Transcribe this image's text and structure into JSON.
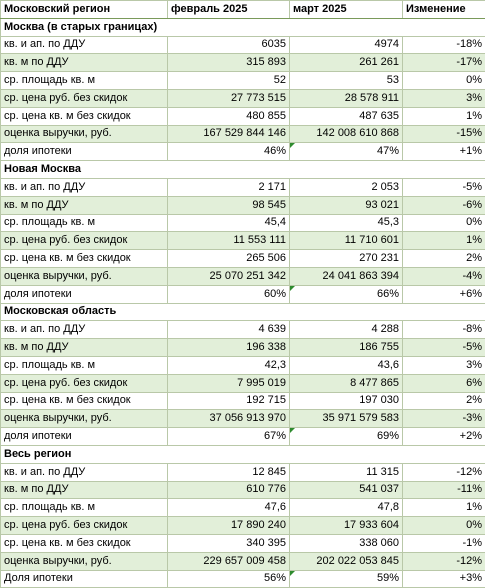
{
  "header": {
    "region": "Московский регион",
    "feb": "февраль 2025",
    "mar": "март 2025",
    "change": "Изменение"
  },
  "sections": [
    {
      "title": "Москва (в старых границах)",
      "rows": [
        {
          "label": "кв. и ап. по ДДУ",
          "feb": "6035",
          "mar": "4974",
          "change": "-18%"
        },
        {
          "label": "кв. м по ДДУ",
          "feb": "315 893",
          "mar": "261 261",
          "change": "-17%"
        },
        {
          "label": "ср. площадь кв. м",
          "feb": "52",
          "mar": "53",
          "change": "0%"
        },
        {
          "label": "ср. цена руб. без скидок",
          "feb": "27 773 515",
          "mar": "28 578 911",
          "change": "3%"
        },
        {
          "label": "ср. цена кв. м без скидок",
          "feb": "480 855",
          "mar": "487 635",
          "change": "1%"
        },
        {
          "label": "оценка выручки, руб.",
          "feb": "167 529 844 146",
          "mar": "142 008 610 868",
          "change": "-15%"
        },
        {
          "label": "доля ипотеки",
          "feb": "46%",
          "mar": "47%",
          "change": "+1%",
          "mark": true
        }
      ]
    },
    {
      "title": "Новая Москва",
      "rows": [
        {
          "label": "кв. и ап. по ДДУ",
          "feb": "2 171",
          "mar": "2 053",
          "change": "-5%"
        },
        {
          "label": "кв. м по ДДУ",
          "feb": "98 545",
          "mar": "93 021",
          "change": "-6%"
        },
        {
          "label": "ср. площадь кв. м",
          "feb": "45,4",
          "mar": "45,3",
          "change": "0%"
        },
        {
          "label": "ср. цена руб. без скидок",
          "feb": "11 553 111",
          "mar": "11 710 601",
          "change": "1%"
        },
        {
          "label": "ср. цена кв. м без скидок",
          "feb": "265 506",
          "mar": "270 231",
          "change": "2%"
        },
        {
          "label": "оценка выручки, руб.",
          "feb": "25 070 251 342",
          "mar": "24 041 863 394",
          "change": "-4%"
        },
        {
          "label": "доля ипотеки",
          "feb": "60%",
          "mar": "66%",
          "change": "+6%",
          "mark": true
        }
      ]
    },
    {
      "title": "Московская область",
      "rows": [
        {
          "label": "кв. и ап. по ДДУ",
          "feb": "4 639",
          "mar": "4 288",
          "change": "-8%"
        },
        {
          "label": "кв. м по ДДУ",
          "feb": "196 338",
          "mar": "186 755",
          "change": "-5%"
        },
        {
          "label": "ср. площадь кв. м",
          "feb": "42,3",
          "mar": "43,6",
          "change": "3%"
        },
        {
          "label": "ср. цена руб. без скидок",
          "feb": "7 995 019",
          "mar": "8 477 865",
          "change": "6%"
        },
        {
          "label": "ср. цена кв. м без скидок",
          "feb": "192 715",
          "mar": "197 030",
          "change": "2%"
        },
        {
          "label": "оценка выручки, руб.",
          "feb": "37 056 913 970",
          "mar": "35 971 579 583",
          "change": "-3%"
        },
        {
          "label": "доля ипотеки",
          "feb": "67%",
          "mar": "69%",
          "change": "+2%",
          "mark": true
        }
      ]
    },
    {
      "title": "Весь регион",
      "rows": [
        {
          "label": "кв. и ап. по ДДУ",
          "feb": "12 845",
          "mar": "11 315",
          "change": "-12%"
        },
        {
          "label": "кв. м по ДДУ",
          "feb": "610 776",
          "mar": "541 037",
          "change": "-11%"
        },
        {
          "label": "ср. площадь кв. м",
          "feb": "47,6",
          "mar": "47,8",
          "change": "1%"
        },
        {
          "label": "ср. цена руб. без скидок",
          "feb": "17 890 240",
          "mar": "17 933 604",
          "change": "0%"
        },
        {
          "label": "ср. цена кв. м без скидок",
          "feb": "340 395",
          "mar": "338 060",
          "change": "-1%"
        },
        {
          "label": "оценка выручки, руб.",
          "feb": "229 657 009 458",
          "mar": "202 022 053 845",
          "change": "-12%"
        },
        {
          "label": "Доля ипотеки",
          "feb": "56%",
          "mar": "59%",
          "change": "+3%",
          "mark": true
        }
      ]
    }
  ]
}
